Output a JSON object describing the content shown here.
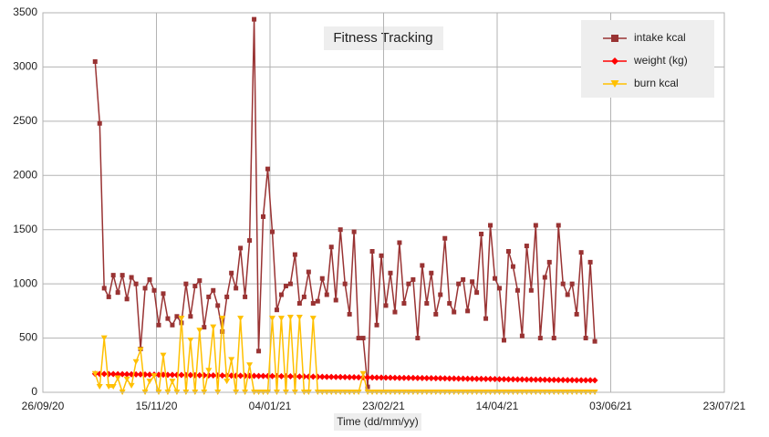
{
  "chart_data": {
    "type": "line",
    "title": "Fitness Tracking",
    "x_label": "Time (dd/mm/yy)",
    "x": [
      "19/10/20",
      "21/10/20",
      "23/10/20",
      "25/10/20",
      "27/10/20",
      "29/10/20",
      "31/10/20",
      "02/11/20",
      "04/11/20",
      "06/11/20",
      "08/11/20",
      "10/11/20",
      "12/11/20",
      "14/11/20",
      "16/11/20",
      "18/11/20",
      "20/11/20",
      "22/11/20",
      "24/11/20",
      "26/11/20",
      "28/11/20",
      "30/11/20",
      "02/12/20",
      "04/12/20",
      "06/12/20",
      "08/12/20",
      "10/12/20",
      "12/12/20",
      "14/12/20",
      "16/12/20",
      "18/12/20",
      "20/12/20",
      "22/12/20",
      "24/12/20",
      "26/12/20",
      "28/12/20",
      "30/12/20",
      "01/01/21",
      "03/01/21",
      "05/01/21",
      "07/01/21",
      "09/01/21",
      "11/01/21",
      "13/01/21",
      "15/01/21",
      "17/01/21",
      "19/01/21",
      "21/01/21",
      "23/01/21",
      "25/01/21",
      "27/01/21",
      "29/01/21",
      "31/01/21",
      "02/02/21",
      "04/02/21",
      "06/02/21",
      "08/02/21",
      "10/02/21",
      "12/02/21",
      "14/02/21",
      "16/02/21",
      "18/02/21",
      "20/02/21",
      "22/02/21",
      "24/02/21",
      "26/02/21",
      "28/02/21",
      "02/03/21",
      "04/03/21",
      "06/03/21",
      "08/03/21",
      "10/03/21",
      "12/03/21",
      "14/03/21",
      "16/03/21",
      "18/03/21",
      "20/03/21",
      "22/03/21",
      "24/03/21",
      "26/03/21",
      "28/03/21",
      "30/03/21",
      "01/04/21",
      "03/04/21",
      "05/04/21",
      "07/04/21",
      "09/04/21",
      "11/04/21",
      "13/04/21",
      "15/04/21",
      "17/04/21",
      "19/04/21",
      "21/04/21",
      "23/04/21",
      "25/04/21",
      "27/04/21",
      "29/04/21",
      "01/05/21",
      "03/05/21",
      "05/05/21",
      "07/05/21",
      "09/05/21",
      "11/05/21",
      "13/05/21",
      "15/05/21",
      "17/05/21",
      "19/05/21",
      "21/05/21",
      "23/05/21",
      "25/05/21",
      "27/05/21"
    ],
    "series": [
      {
        "name": "intake kcal",
        "color": "#993333",
        "marker": "square",
        "values": [
          3050,
          2480,
          960,
          880,
          1080,
          920,
          1080,
          860,
          1060,
          1000,
          400,
          960,
          1040,
          940,
          620,
          910,
          680,
          620,
          700,
          640,
          1000,
          700,
          980,
          1030,
          600,
          880,
          940,
          800,
          560,
          880,
          1100,
          960,
          1330,
          880,
          1400,
          3440,
          380,
          1620,
          2060,
          1480,
          760,
          900,
          980,
          1000,
          1270,
          820,
          880,
          1110,
          820,
          840,
          1050,
          900,
          1340,
          850,
          1500,
          1000,
          720,
          1480,
          500,
          500,
          50,
          1300,
          620,
          1260,
          800,
          1100,
          740,
          1380,
          820,
          1000,
          1040,
          500,
          1170,
          820,
          1100,
          720,
          900,
          1420,
          820,
          740,
          1000,
          1040,
          750,
          1020,
          920,
          1460,
          680,
          1540,
          1050,
          960,
          480,
          1300,
          1160,
          940,
          520,
          1350,
          940,
          1540,
          500,
          1060,
          1200,
          500,
          1540,
          1000,
          900,
          1000,
          720,
          1290,
          500,
          1200,
          470
        ]
      },
      {
        "name": "weight (kg)",
        "color": "#ff0000",
        "marker": "diamond",
        "values": [
          170,
          169,
          169,
          168,
          168,
          167,
          167,
          166,
          166,
          165,
          165,
          164,
          163,
          163,
          162,
          162,
          161,
          161,
          160,
          160,
          159,
          159,
          158,
          157,
          157,
          156,
          156,
          155,
          155,
          154,
          154,
          153,
          153,
          152,
          151,
          151,
          150,
          150,
          149,
          149,
          148,
          148,
          147,
          147,
          146,
          145,
          145,
          144,
          144,
          143,
          143,
          142,
          142,
          141,
          141,
          140,
          139,
          139,
          138,
          138,
          137,
          137,
          136,
          136,
          135,
          135,
          134,
          133,
          133,
          132,
          132,
          131,
          131,
          130,
          130,
          129,
          129,
          128,
          127,
          127,
          126,
          126,
          125,
          125,
          124,
          124,
          123,
          123,
          122,
          121,
          121,
          120,
          120,
          119,
          119,
          118,
          118,
          117,
          117,
          116,
          115,
          115,
          114,
          114,
          113,
          113,
          112,
          112,
          111,
          111,
          110
        ]
      },
      {
        "name": "burn kcal",
        "color": "#ffc000",
        "marker": "triangle-down",
        "values": [
          170,
          50,
          500,
          50,
          50,
          130,
          0,
          120,
          60,
          280,
          390,
          0,
          100,
          150,
          0,
          340,
          0,
          100,
          0,
          680,
          0,
          480,
          0,
          570,
          0,
          200,
          600,
          0,
          680,
          100,
          300,
          0,
          680,
          0,
          250,
          0,
          0,
          0,
          0,
          680,
          0,
          680,
          0,
          690,
          0,
          690,
          0,
          0,
          680,
          0,
          0,
          0,
          0,
          0,
          0,
          0,
          0,
          0,
          0,
          170,
          0,
          0,
          0,
          0,
          0,
          0,
          0,
          0,
          0,
          0,
          0,
          0,
          0,
          0,
          0,
          0,
          0,
          0,
          0,
          0,
          0,
          0,
          0,
          0,
          0,
          0,
          0,
          0,
          0,
          0,
          0,
          0,
          0,
          0,
          0,
          0,
          0,
          0,
          0,
          0,
          0,
          0,
          0,
          0,
          0,
          0,
          0,
          0,
          0,
          0,
          0
        ]
      }
    ],
    "xlim": [
      "26/09/20",
      "23/07/21"
    ],
    "xticks": [
      "26/09/20",
      "15/11/20",
      "04/01/21",
      "23/02/21",
      "14/04/21",
      "03/06/21",
      "23/07/21"
    ],
    "ylim": [
      0,
      3500
    ],
    "yticks": [
      0,
      500,
      1000,
      1500,
      2000,
      2500,
      3000,
      3500
    ],
    "grid": true,
    "legend": "top-right"
  }
}
